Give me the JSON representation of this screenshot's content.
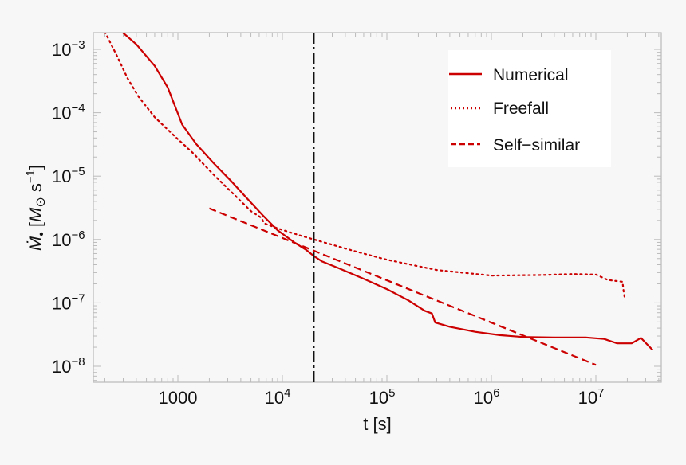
{
  "chart_data": {
    "type": "line",
    "title": "",
    "xlabel": "t [s]",
    "ylabel": "Ṁ• [M⊙ s⁻¹]",
    "xscale": "log",
    "yscale": "log",
    "xlim": [
      150,
      40000000
    ],
    "ylim": [
      5e-09,
      0.002
    ],
    "grid": false,
    "legend_position": "upper right",
    "colors": {
      "series": "#cc0000",
      "vline": "#111111",
      "frame": "#bbbbbb",
      "background": "#f7f7f7",
      "legend_bg": "#ffffff"
    },
    "x_ticks": [
      {
        "value": 1000,
        "base": "1000",
        "exp": ""
      },
      {
        "value": 10000,
        "base": "10",
        "exp": "4"
      },
      {
        "value": 100000,
        "base": "10",
        "exp": "5"
      },
      {
        "value": 1000000,
        "base": "10",
        "exp": "6"
      },
      {
        "value": 10000000,
        "base": "10",
        "exp": "7"
      }
    ],
    "y_ticks": [
      {
        "value": 0.001,
        "base": "10",
        "exp": "−3"
      },
      {
        "value": 0.0001,
        "base": "10",
        "exp": "−4"
      },
      {
        "value": 1e-05,
        "base": "10",
        "exp": "−5"
      },
      {
        "value": 1e-06,
        "base": "10",
        "exp": "−6"
      },
      {
        "value": 1e-07,
        "base": "10",
        "exp": "−7"
      },
      {
        "value": 1e-08,
        "base": "10",
        "exp": "−8"
      }
    ],
    "vertical_line": {
      "x": 20000,
      "style": "dash-dot",
      "label": ""
    },
    "series": [
      {
        "name": "Numerical",
        "style": "solid",
        "x": [
          280,
          400,
          600,
          800,
          1100,
          1500,
          2200,
          3200,
          4500,
          6500,
          9000,
          13000,
          17000,
          20000,
          24000,
          35000,
          60000,
          100000,
          160000,
          230000,
          270000,
          290000,
          400000,
          700000,
          1200000,
          2000000,
          4000000,
          8000000,
          12000000,
          16000000,
          22000000,
          27000000,
          35000000
        ],
        "y": [
          0.002,
          0.0012,
          0.00055,
          0.00025,
          6.5e-05,
          3.2e-05,
          1.6e-05,
          8.5e-06,
          4.6e-06,
          2.4e-06,
          1.4e-06,
          9e-07,
          6.8e-07,
          5.5e-07,
          4.5e-07,
          3.5e-07,
          2.4e-07,
          1.65e-07,
          1.1e-07,
          7.5e-08,
          6.8e-08,
          4.9e-08,
          4.2e-08,
          3.5e-08,
          3.1e-08,
          2.9e-08,
          2.85e-08,
          2.85e-08,
          2.7e-08,
          2.3e-08,
          2.3e-08,
          2.8e-08,
          1.8e-08
        ]
      },
      {
        "name": "Freefall",
        "style": "dotted",
        "x": [
          200,
          260,
          330,
          420,
          600,
          900,
          1400,
          2200,
          3500,
          5000,
          6300,
          6700,
          9000,
          15000,
          25000,
          50000,
          100000,
          300000,
          1000000,
          3000000,
          6000000,
          10000000,
          13000000,
          18000000,
          18500000,
          19000000
        ],
        "y": [
          0.0019,
          0.0008,
          0.00035,
          0.00018,
          8.5e-05,
          4.5e-05,
          2.3e-05,
          1.05e-05,
          5e-06,
          2.8e-06,
          2.2e-06,
          1.8e-06,
          1.5e-06,
          1.15e-06,
          9e-07,
          6.5e-07,
          4.8e-07,
          3.3e-07,
          2.7e-07,
          2.75e-07,
          2.85e-07,
          2.8e-07,
          2.3e-07,
          2.15e-07,
          1.45e-07,
          1.15e-07
        ]
      },
      {
        "name": "Self-similar",
        "style": "dashed",
        "x": [
          2000,
          10000000
        ],
        "y": [
          3.1e-06,
          1.05e-08
        ]
      }
    ],
    "legend": [
      {
        "label": "Numerical",
        "style": "solid"
      },
      {
        "label": "Freefall",
        "style": "dotted"
      },
      {
        "label": "Self−similar",
        "style": "dashed"
      }
    ]
  }
}
